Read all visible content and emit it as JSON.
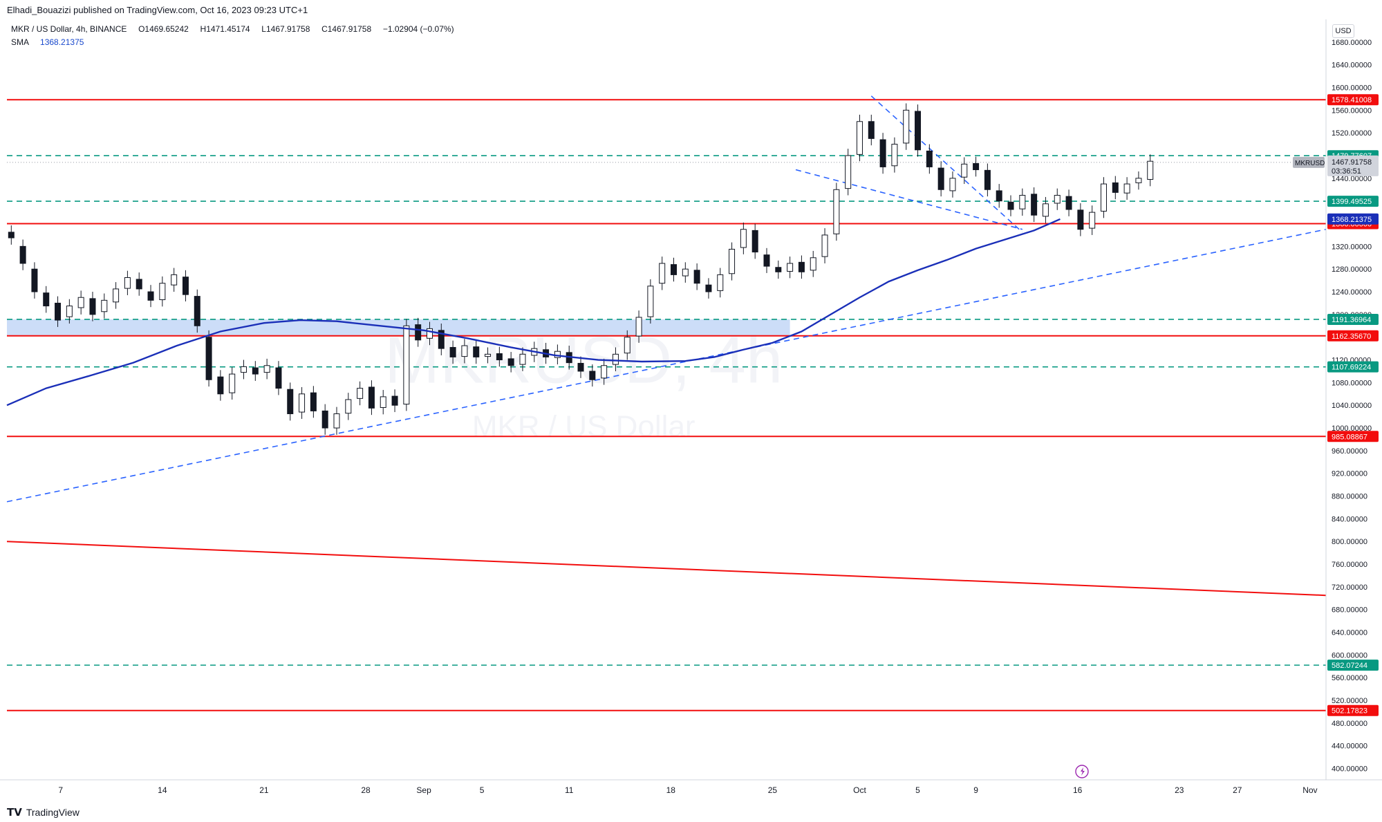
{
  "publisher": "Elhadi_Bouazizi published on TradingView.com, Oct 16, 2023 09:23 UTC+1",
  "legend": {
    "symbol_desc": "MKR / US Dollar, 4h, BINANCE",
    "open_label": "O",
    "open": "1469.65242",
    "high_label": "H",
    "high": "1471.45174",
    "low_label": "L",
    "low": "1467.91758",
    "close_label": "C",
    "close": "1467.91758",
    "change": "−1.02904 (−0.07%)",
    "sma_label": "SMA",
    "sma_value": "1368.21375"
  },
  "currency": "USD",
  "footer": {
    "brand": "TradingView"
  },
  "colors": {
    "up": "#089981",
    "down": "#f23645",
    "candle": "#131722",
    "sma": "#1a2fb8",
    "resistance": "#f20d0d",
    "support_dash": "#089981",
    "trend_dash": "#2962ff",
    "zone": "#bbd1f5"
  },
  "chart_data": {
    "type": "candlestick",
    "symbol": "MKRUSD",
    "timeframe": "4h",
    "watermark_symbol": "MKRUSD, 4h",
    "watermark_desc": "MKR / US Dollar",
    "ylim": [
      380,
      1720
    ],
    "y_ticks": [
      400,
      440,
      480,
      520,
      560,
      600,
      640,
      680,
      720,
      760,
      800,
      840,
      880,
      920,
      960,
      1000,
      1040,
      1080,
      1120,
      1160,
      1200,
      1240,
      1280,
      1320,
      1360,
      1400,
      1440,
      1480,
      1520,
      1560,
      1600,
      1640,
      1680
    ],
    "x_ticks": [
      {
        "label": "7",
        "day": 7
      },
      {
        "label": "14",
        "day": 14
      },
      {
        "label": "21",
        "day": 21
      },
      {
        "label": "28",
        "day": 28
      },
      {
        "label": "Sep",
        "day": 32
      },
      {
        "label": "5",
        "day": 36
      },
      {
        "label": "11",
        "day": 42
      },
      {
        "label": "18",
        "day": 49
      },
      {
        "label": "25",
        "day": 56
      },
      {
        "label": "Oct",
        "day": 62
      },
      {
        "label": "5",
        "day": 66
      },
      {
        "label": "9",
        "day": 70
      },
      {
        "label": "16",
        "day": 77
      },
      {
        "label": "23",
        "day": 84
      },
      {
        "label": "27",
        "day": 88
      },
      {
        "label": "Nov",
        "day": 93
      }
    ],
    "x_day_range": [
      3.3,
      94.1
    ],
    "last_price": "1467.91758",
    "last_price_value": 1467.92,
    "countdown": "03:36:51",
    "horizontal_levels": [
      {
        "value": 1578.41008,
        "label": "1578.41008",
        "style": "solid",
        "color": "#f20d0d"
      },
      {
        "value": 1479.77607,
        "label": "1479.77607",
        "style": "dash",
        "color": "#089981"
      },
      {
        "value": 1399.49525,
        "label": "1399.49525",
        "style": "dash",
        "color": "#089981"
      },
      {
        "value": 1360.0,
        "label": "1360.00000",
        "style": "solid",
        "color": "#f20d0d"
      },
      {
        "value": 1191.36964,
        "label": "1191.36964",
        "style": "dash",
        "color": "#089981"
      },
      {
        "value": 1162.3567,
        "label": "1162.35670",
        "style": "solid",
        "color": "#f20d0d"
      },
      {
        "value": 1107.69224,
        "label": "1107.69224",
        "style": "dash",
        "color": "#089981"
      },
      {
        "value": 985.08867,
        "label": "985.08867",
        "style": "solid",
        "color": "#f20d0d"
      },
      {
        "value": 582.07244,
        "label": "582.07244",
        "style": "dash",
        "color": "#089981"
      },
      {
        "value": 502.17823,
        "label": "502.17823",
        "style": "solid",
        "color": "#f20d0d"
      }
    ],
    "sma_badge": {
      "value": 1368.21375,
      "label": "1368.21375"
    },
    "zone": {
      "from_day": 3.3,
      "to_day": 57.2,
      "low": 1162.36,
      "high": 1191.37
    },
    "trendlines": [
      {
        "style": "dash",
        "color": "#2962ff",
        "points": [
          [
            3.3,
            870
          ],
          [
            94.1,
            1350
          ]
        ]
      },
      {
        "style": "solid",
        "color": "#f20d0d",
        "points": [
          [
            3.3,
            800
          ],
          [
            94.1,
            705
          ]
        ]
      },
      {
        "style": "dash",
        "color": "#2962ff",
        "points": [
          [
            62.8,
            1585
          ],
          [
            73.2,
            1345
          ]
        ]
      },
      {
        "style": "dash",
        "color": "#2962ff",
        "points": [
          [
            57.6,
            1455
          ],
          [
            73.2,
            1350
          ]
        ]
      }
    ],
    "sma_points": [
      [
        3.3,
        1040
      ],
      [
        6,
        1070
      ],
      [
        9,
        1092
      ],
      [
        12,
        1115
      ],
      [
        15,
        1145
      ],
      [
        18,
        1170
      ],
      [
        21,
        1185
      ],
      [
        23.5,
        1190
      ],
      [
        26,
        1188
      ],
      [
        29,
        1180
      ],
      [
        32,
        1172
      ],
      [
        35,
        1158
      ],
      [
        38,
        1142
      ],
      [
        41,
        1128
      ],
      [
        44,
        1120
      ],
      [
        47,
        1117
      ],
      [
        50,
        1118
      ],
      [
        52,
        1125
      ],
      [
        54,
        1138
      ],
      [
        56,
        1150
      ],
      [
        58,
        1170
      ],
      [
        60,
        1200
      ],
      [
        62,
        1230
      ],
      [
        64,
        1258
      ],
      [
        66,
        1278
      ],
      [
        68,
        1296
      ],
      [
        70,
        1316
      ],
      [
        72,
        1332
      ],
      [
        74,
        1348
      ],
      [
        75.8,
        1368
      ]
    ],
    "candles": [
      [
        3.6,
        1345,
        1335
      ],
      [
        4.4,
        1320,
        1290
      ],
      [
        5.2,
        1280,
        1240
      ],
      [
        6,
        1238,
        1215
      ],
      [
        6.8,
        1220,
        1190
      ],
      [
        7.6,
        1196,
        1215
      ],
      [
        8.4,
        1212,
        1230
      ],
      [
        9.2,
        1228,
        1200
      ],
      [
        10,
        1205,
        1225
      ],
      [
        10.8,
        1222,
        1245
      ],
      [
        11.6,
        1246,
        1265
      ],
      [
        12.4,
        1262,
        1245
      ],
      [
        13.2,
        1240,
        1225
      ],
      [
        14,
        1226,
        1255
      ],
      [
        14.8,
        1252,
        1270
      ],
      [
        15.6,
        1266,
        1235
      ],
      [
        16.4,
        1232,
        1180
      ],
      [
        17.2,
        1160,
        1085
      ],
      [
        18,
        1090,
        1060
      ],
      [
        18.8,
        1062,
        1095
      ],
      [
        19.6,
        1098,
        1108
      ],
      [
        20.4,
        1106,
        1095
      ],
      [
        21.2,
        1098,
        1110
      ],
      [
        22,
        1106,
        1070
      ],
      [
        22.8,
        1068,
        1025
      ],
      [
        23.6,
        1028,
        1060
      ],
      [
        24.4,
        1062,
        1030
      ],
      [
        25.2,
        1030,
        1000
      ],
      [
        26,
        1000,
        1025
      ],
      [
        26.8,
        1026,
        1050
      ],
      [
        27.6,
        1052,
        1070
      ],
      [
        28.4,
        1072,
        1035
      ],
      [
        29.2,
        1036,
        1055
      ],
      [
        30,
        1056,
        1040
      ],
      [
        30.8,
        1042,
        1180
      ],
      [
        31.6,
        1182,
        1155
      ],
      [
        32.4,
        1158,
        1175
      ],
      [
        33.2,
        1172,
        1140
      ],
      [
        34,
        1142,
        1125
      ],
      [
        34.8,
        1126,
        1145
      ],
      [
        35.6,
        1143,
        1125
      ],
      [
        36.4,
        1126,
        1130
      ],
      [
        37.2,
        1131,
        1120
      ],
      [
        38,
        1122,
        1110
      ],
      [
        38.8,
        1112,
        1130
      ],
      [
        39.6,
        1128,
        1140
      ],
      [
        40.4,
        1138,
        1125
      ],
      [
        41.2,
        1124,
        1135
      ],
      [
        42,
        1133,
        1115
      ],
      [
        42.8,
        1114,
        1100
      ],
      [
        43.6,
        1100,
        1085
      ],
      [
        44.4,
        1088,
        1110
      ],
      [
        45.2,
        1112,
        1130
      ],
      [
        46,
        1132,
        1160
      ],
      [
        46.8,
        1162,
        1195
      ],
      [
        47.6,
        1196,
        1250
      ],
      [
        48.4,
        1255,
        1290
      ],
      [
        49.2,
        1288,
        1270
      ],
      [
        50,
        1268,
        1280
      ],
      [
        50.8,
        1278,
        1255
      ],
      [
        51.6,
        1252,
        1240
      ],
      [
        52.4,
        1242,
        1270
      ],
      [
        53.2,
        1272,
        1315
      ],
      [
        54,
        1318,
        1350
      ],
      [
        54.8,
        1348,
        1310
      ],
      [
        55.6,
        1305,
        1285
      ],
      [
        56.4,
        1283,
        1275
      ],
      [
        57.2,
        1276,
        1290
      ],
      [
        58,
        1292,
        1275
      ],
      [
        58.8,
        1278,
        1300
      ],
      [
        59.6,
        1302,
        1340
      ],
      [
        60.4,
        1342,
        1420
      ],
      [
        61.2,
        1422,
        1480
      ],
      [
        62,
        1482,
        1540
      ],
      [
        62.8,
        1540,
        1510
      ],
      [
        63.6,
        1508,
        1460
      ],
      [
        64.4,
        1462,
        1500
      ],
      [
        65.2,
        1502,
        1560
      ],
      [
        66,
        1558,
        1490
      ],
      [
        66.8,
        1488,
        1460
      ],
      [
        67.6,
        1458,
        1420
      ],
      [
        68.4,
        1418,
        1440
      ],
      [
        69.2,
        1442,
        1465
      ],
      [
        70,
        1466,
        1455
      ],
      [
        70.8,
        1454,
        1420
      ],
      [
        71.6,
        1418,
        1400
      ],
      [
        72.4,
        1398,
        1385
      ],
      [
        73.2,
        1386,
        1410
      ],
      [
        74,
        1412,
        1375
      ],
      [
        74.8,
        1373,
        1395
      ],
      [
        75.6,
        1396,
        1410
      ],
      [
        76.4,
        1408,
        1385
      ],
      [
        77.2,
        1384,
        1350
      ],
      [
        78,
        1352,
        1380
      ],
      [
        78.8,
        1382,
        1430
      ],
      [
        79.6,
        1432,
        1415
      ],
      [
        80.4,
        1414,
        1430
      ],
      [
        81.2,
        1432,
        1440
      ],
      [
        82,
        1438,
        1470
      ]
    ]
  }
}
